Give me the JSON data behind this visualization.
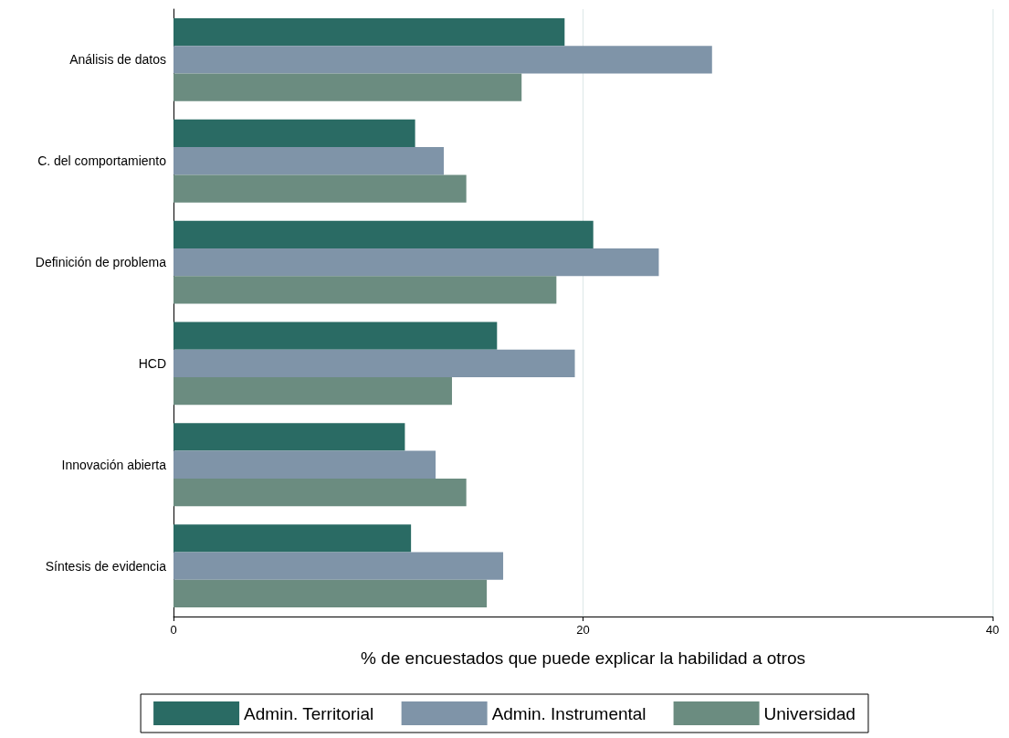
{
  "chart_data": {
    "type": "bar",
    "orientation": "horizontal",
    "xlabel": "% de encuestados que puede explicar la habilidad a otros",
    "categories": [
      "Análisis de datos",
      "C. del comportamiento",
      "Definición de problema",
      "HCD",
      "Innovación abierta",
      "Síntesis de evidencia"
    ],
    "series": [
      {
        "name": "Admin. Territorial",
        "color": "#2a6b64",
        "values": [
          19.1,
          11.8,
          20.5,
          15.8,
          11.3,
          11.6
        ]
      },
      {
        "name": "Admin. Instrumental",
        "color": "#7f94a8",
        "values": [
          26.3,
          13.2,
          23.7,
          19.6,
          12.8,
          16.1
        ]
      },
      {
        "name": "Universidad",
        "color": "#6b8c80",
        "values": [
          17.0,
          14.3,
          18.7,
          13.6,
          14.3,
          15.3
        ]
      }
    ],
    "xlim": [
      0,
      40
    ],
    "xticks": [
      0,
      20,
      40
    ],
    "grid": "x",
    "legend": "bottom"
  }
}
